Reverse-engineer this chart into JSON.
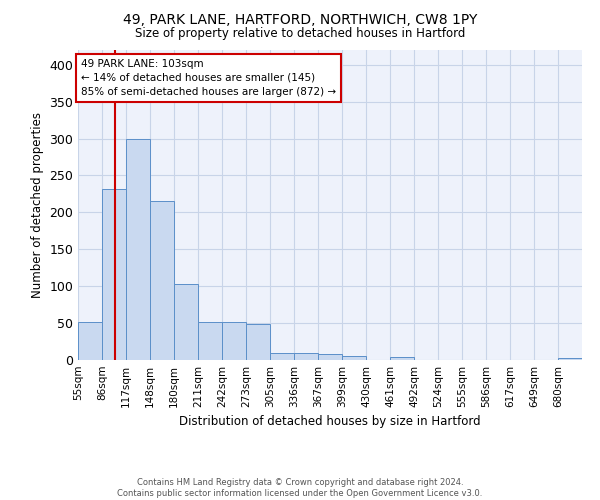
{
  "title_line1": "49, PARK LANE, HARTFORD, NORTHWICH, CW8 1PY",
  "title_line2": "Size of property relative to detached houses in Hartford",
  "xlabel": "Distribution of detached houses by size in Hartford",
  "ylabel": "Number of detached properties",
  "bin_labels": [
    "55sqm",
    "86sqm",
    "117sqm",
    "148sqm",
    "180sqm",
    "211sqm",
    "242sqm",
    "273sqm",
    "305sqm",
    "336sqm",
    "367sqm",
    "399sqm",
    "430sqm",
    "461sqm",
    "492sqm",
    "524sqm",
    "555sqm",
    "586sqm",
    "617sqm",
    "649sqm",
    "680sqm"
  ],
  "bar_heights": [
    52,
    232,
    300,
    215,
    103,
    52,
    52,
    49,
    10,
    10,
    8,
    5,
    0,
    4,
    0,
    0,
    0,
    0,
    0,
    0,
    3
  ],
  "bar_color": "#c9d9f0",
  "bar_edge_color": "#5b8fc9",
  "grid_color": "#c8d4e8",
  "background_color": "#eef2fb",
  "vline_x": 103,
  "vline_color": "#cc0000",
  "annotation_text": "49 PARK LANE: 103sqm\n← 14% of detached houses are smaller (145)\n85% of semi-detached houses are larger (872) →",
  "annotation_box_color": "white",
  "annotation_box_edge": "#cc0000",
  "ylim": [
    0,
    420
  ],
  "yticks": [
    0,
    50,
    100,
    150,
    200,
    250,
    300,
    350,
    400
  ],
  "footnote": "Contains HM Land Registry data © Crown copyright and database right 2024.\nContains public sector information licensed under the Open Government Licence v3.0.",
  "bin_width": 31,
  "fig_width": 6.0,
  "fig_height": 5.0,
  "dpi": 100
}
